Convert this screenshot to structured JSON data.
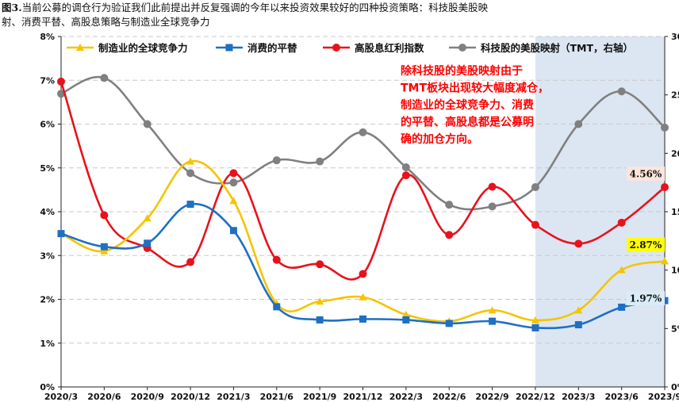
{
  "caption": {
    "prefix": "图3.",
    "line1": "当前公募的调仓行为验证我们此前提出并反复强调的今年以来投资效果较好的四种投资策略：科技股美股映",
    "line2": "射、消费平替、高股息策略与制造业全球竞争力"
  },
  "colors": {
    "manufacturing": "#f5c400",
    "consumption": "#1f6fc4",
    "dividend": "#e8121c",
    "tmt": "#808080",
    "shade": "#dce6f2",
    "annotation": "#ff0000"
  },
  "annotation": {
    "lines": [
      "除科技股的美股映射由于",
      "TMT板块出现较大幅度减仓，",
      "制造业的全球竞争力、消费",
      "的平替、高股息都是公募明",
      "确的加仓方向。"
    ]
  },
  "callouts": {
    "dividend": "4.56%",
    "manufacturing": "2.87%",
    "consumption": "1.97%"
  },
  "chart_data": {
    "type": "line",
    "categories": [
      "2020/3",
      "2020/6",
      "2020/9",
      "2020/12",
      "2021/3",
      "2021/6",
      "2021/9",
      "2021/12",
      "2022/3",
      "2022/6",
      "2022/9",
      "2022/12",
      "2023/3",
      "2023/6",
      "2023/9"
    ],
    "y_left": {
      "ticks": [
        "0%",
        "1%",
        "2%",
        "3%",
        "4%",
        "5%",
        "6%",
        "7%",
        "8%"
      ],
      "ylim": [
        0,
        8
      ]
    },
    "y_right": {
      "ticks": [
        "0%",
        "5%",
        "10%",
        "15%",
        "20%",
        "25%",
        "30%"
      ],
      "ylim": [
        0,
        30
      ]
    },
    "shaded_from": "2022/12",
    "series": [
      {
        "name": "制造业的全球竞争力",
        "axis": "left",
        "color_key": "manufacturing",
        "marker": "triangle",
        "values": [
          3.5,
          3.1,
          3.85,
          5.15,
          4.25,
          1.9,
          1.95,
          2.05,
          1.65,
          1.5,
          1.75,
          1.52,
          1.75,
          2.67,
          2.87
        ]
      },
      {
        "name": "消费的平替",
        "axis": "left",
        "color_key": "consumption",
        "marker": "square",
        "values": [
          3.5,
          3.2,
          3.28,
          4.17,
          3.57,
          1.83,
          1.53,
          1.55,
          1.53,
          1.45,
          1.5,
          1.35,
          1.42,
          1.82,
          1.97
        ]
      },
      {
        "name": "高股息红利指数",
        "axis": "left",
        "color_key": "dividend",
        "marker": "circle",
        "values": [
          6.97,
          3.92,
          3.17,
          2.85,
          4.88,
          2.9,
          2.8,
          2.58,
          4.83,
          3.47,
          4.57,
          3.7,
          3.27,
          3.75,
          4.56
        ]
      },
      {
        "name": "科技股的美股映射（TMT，右轴）",
        "axis": "right",
        "color_key": "tmt",
        "marker": "circle",
        "values": [
          25.1,
          26.45,
          22.5,
          18.3,
          17.5,
          19.4,
          19.3,
          21.8,
          18.8,
          15.6,
          15.45,
          17.1,
          22.5,
          25.3,
          22.2
        ]
      }
    ]
  }
}
